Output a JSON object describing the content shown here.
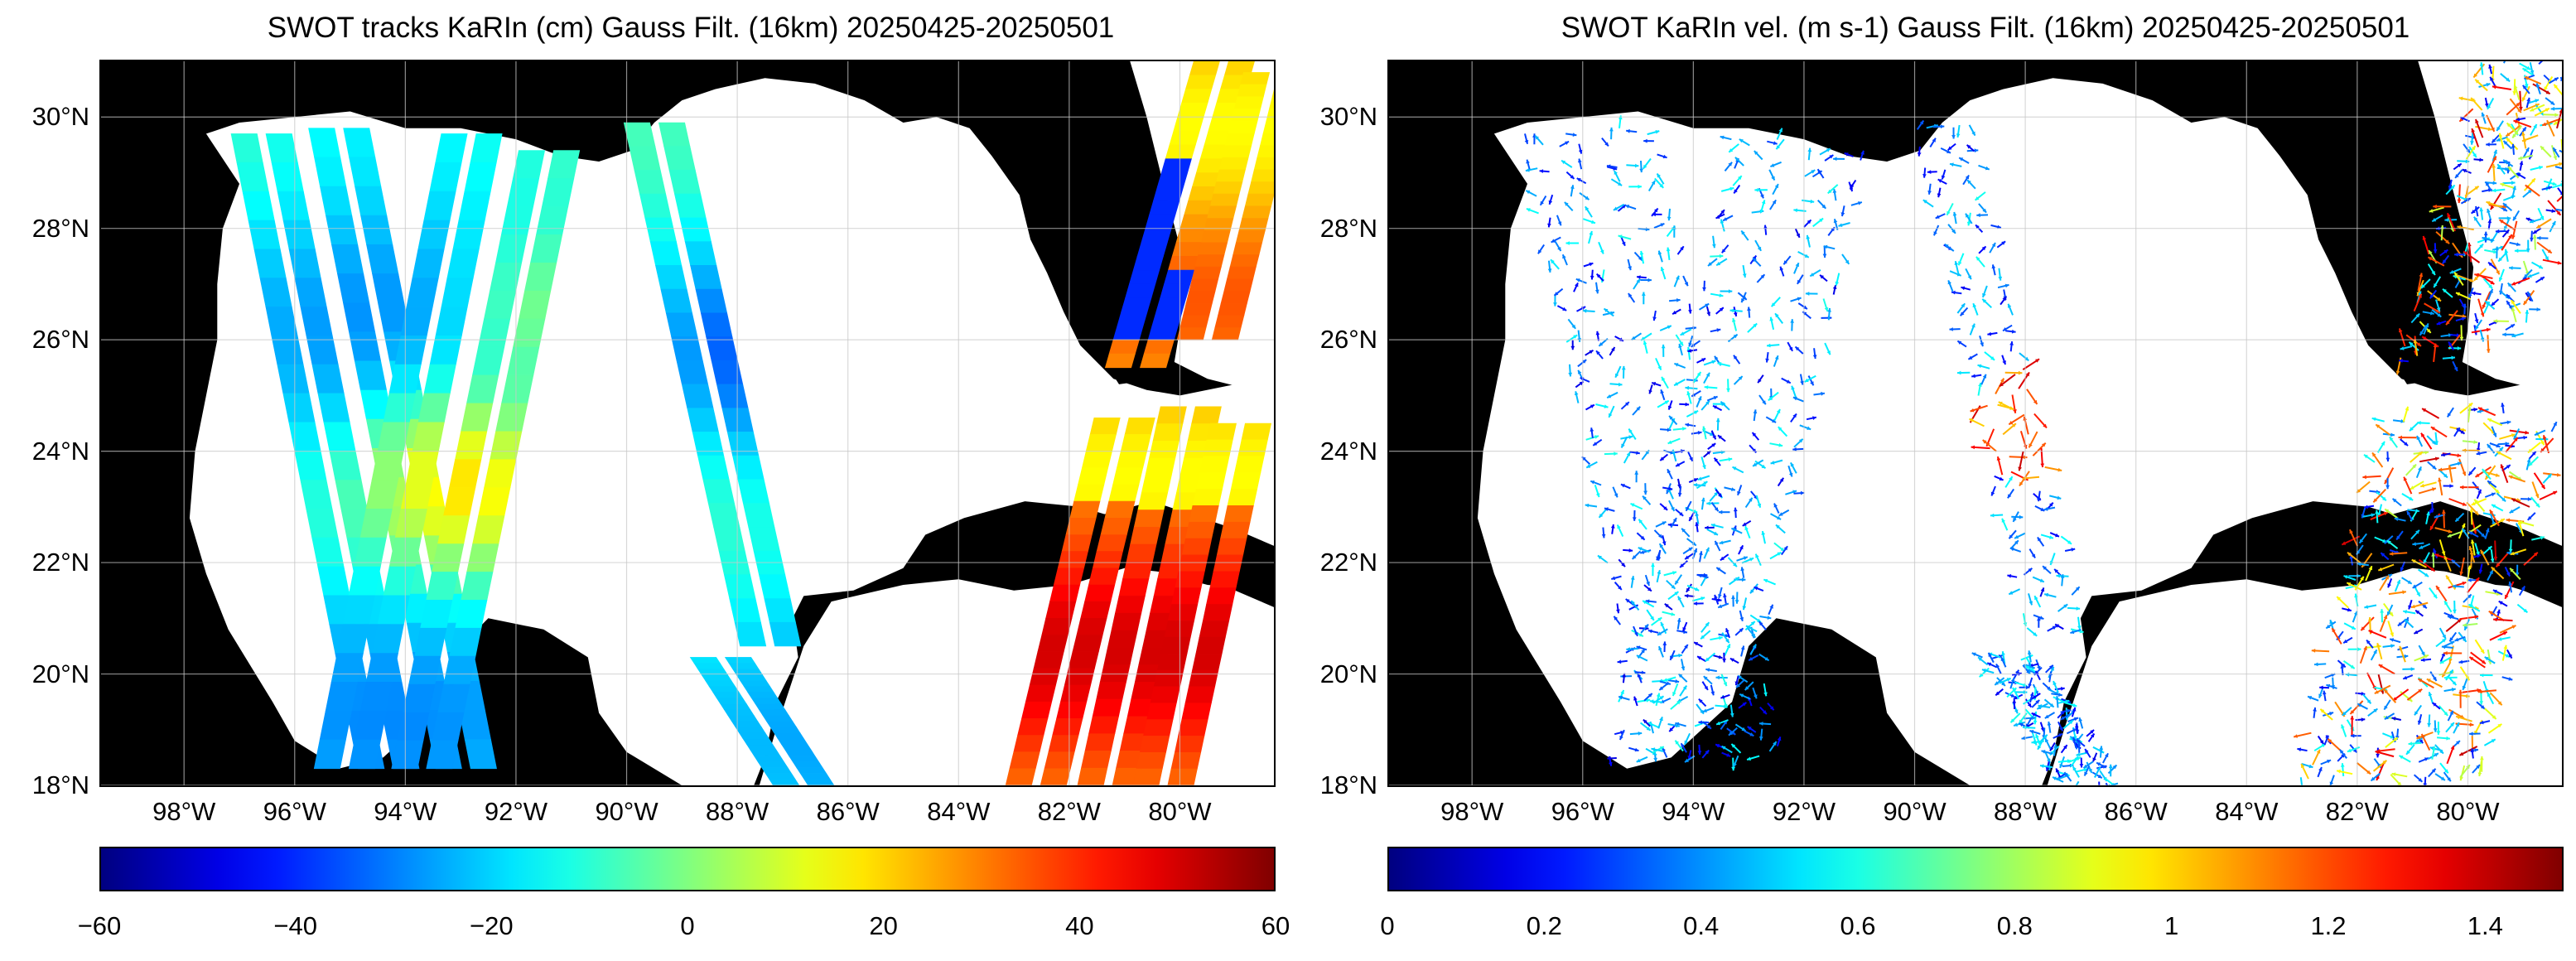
{
  "panels": [
    {
      "title": "SWOT tracks KaRIn (cm) Gauss Filt. (16km) 20250425-20250501",
      "lat_labels": [
        "30°N",
        "28°N",
        "26°N",
        "24°N",
        "22°N",
        "20°N",
        "18°N"
      ],
      "lon_labels": [
        "98°W",
        "96°W",
        "94°W",
        "92°W",
        "90°W",
        "88°W",
        "86°W",
        "84°W",
        "82°W",
        "80°W"
      ],
      "colorbar": {
        "colormap": "jet",
        "ticks": [
          "−60",
          "−40",
          "−20",
          "0",
          "20",
          "40",
          "60"
        ],
        "range": [
          -60,
          60
        ]
      },
      "content": "ssh_swaths"
    },
    {
      "title": "SWOT KaRIn vel. (m s-1) Gauss Filt. (16km) 20250425-20250501",
      "lat_labels": [
        "30°N",
        "28°N",
        "26°N",
        "24°N",
        "22°N",
        "20°N",
        "18°N"
      ],
      "lon_labels": [
        "98°W",
        "96°W",
        "94°W",
        "92°W",
        "90°W",
        "88°W",
        "86°W",
        "84°W",
        "82°W",
        "80°W"
      ],
      "colorbar": {
        "colormap": "jet",
        "ticks": [
          "0",
          "0.2",
          "0.4",
          "0.6",
          "0.8",
          "1",
          "1.2",
          "1.4"
        ],
        "range": [
          0,
          1.5
        ]
      },
      "content": "velocity_arrows"
    }
  ],
  "map_extent": {
    "lon_min": -99.5,
    "lon_max": -78.3,
    "lat_min": 18,
    "lat_max": 31
  },
  "colors": {
    "land": "#000000",
    "ocean": "#ffffff",
    "grid": "#c8c8c8"
  }
}
